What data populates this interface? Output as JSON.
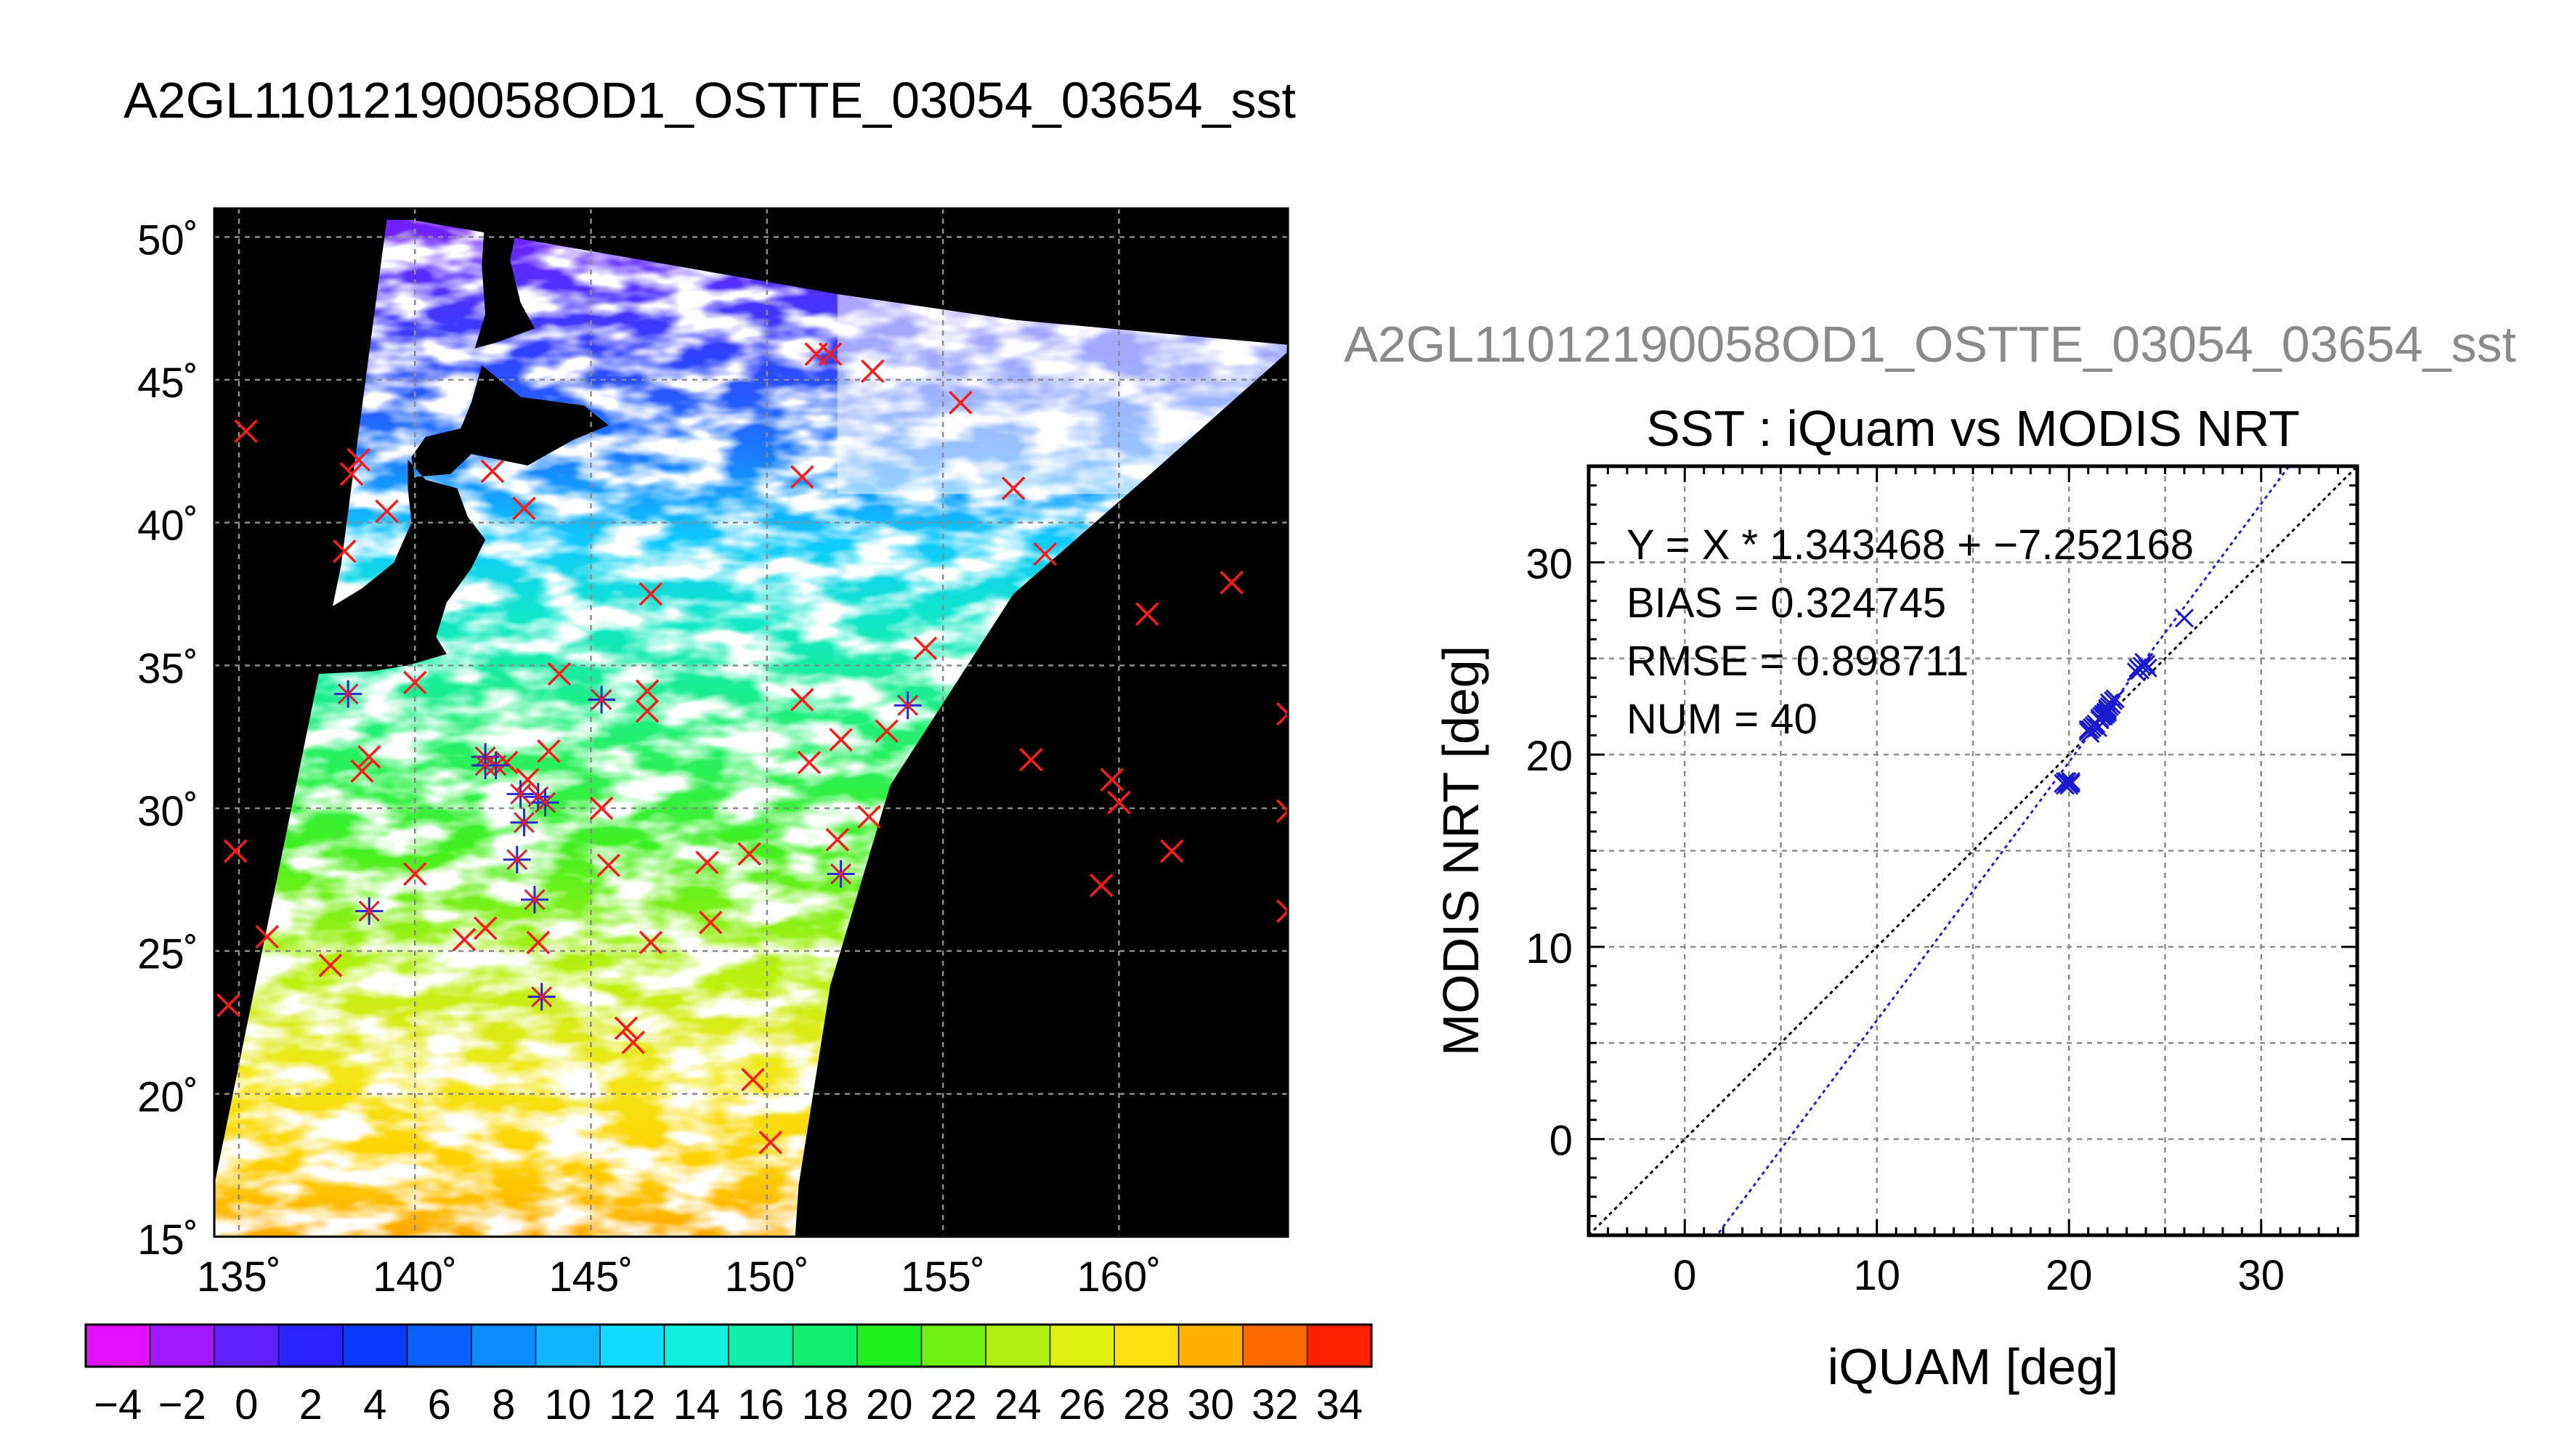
{
  "map_title": "A2GL11012190058OD1_OSTTE_03054_03654_sst",
  "scatter_super_title": "A2GL11012190058OD1_OSTTE_03054_03654_sst",
  "map": {
    "lat_ticks": [
      15,
      20,
      25,
      30,
      35,
      40,
      45,
      50
    ],
    "lat_labels": [
      "15˚",
      "20˚",
      "25˚",
      "30˚",
      "35˚",
      "40˚",
      "45˚",
      "50˚"
    ],
    "lon_ticks": [
      135,
      140,
      145,
      150,
      155,
      160
    ],
    "lon_labels": [
      "135˚",
      "140˚",
      "145˚",
      "150˚",
      "155˚",
      "160˚"
    ],
    "lon_range": [
      134.3,
      164.8
    ],
    "lat_range": [
      15.0,
      51.0
    ],
    "colors": {
      "background": "#000000",
      "cloud": "#ffffff",
      "red_marker": "#ff1a1a",
      "matched_marker": "#2a2ad0"
    },
    "red_markers": [
      [
        135.2,
        43.2
      ],
      [
        134.9,
        28.5
      ],
      [
        134.7,
        23.1
      ],
      [
        135.8,
        25.5
      ],
      [
        138.4,
        42.2
      ],
      [
        138.2,
        41.7
      ],
      [
        139.2,
        40.4
      ],
      [
        138.0,
        39.0
      ],
      [
        140.0,
        34.4
      ],
      [
        138.7,
        31.8
      ],
      [
        138.5,
        31.3
      ],
      [
        140.0,
        27.7
      ],
      [
        137.6,
        24.5
      ],
      [
        141.4,
        25.4
      ],
      [
        142.0,
        25.8
      ],
      [
        142.2,
        41.8
      ],
      [
        143.1,
        40.5
      ],
      [
        142.6,
        31.6
      ],
      [
        143.2,
        31.0
      ],
      [
        143.8,
        32.0
      ],
      [
        143.5,
        25.3
      ],
      [
        144.1,
        34.7
      ],
      [
        145.3,
        30.0
      ],
      [
        145.5,
        28.0
      ],
      [
        146.7,
        37.5
      ],
      [
        146.6,
        34.1
      ],
      [
        146.6,
        33.4
      ],
      [
        146.7,
        25.3
      ],
      [
        146.0,
        22.3
      ],
      [
        146.2,
        21.8
      ],
      [
        148.3,
        28.1
      ],
      [
        148.4,
        26.0
      ],
      [
        149.5,
        28.4
      ],
      [
        149.6,
        20.5
      ],
      [
        150.1,
        18.3
      ],
      [
        151.0,
        33.8
      ],
      [
        151.2,
        31.6
      ],
      [
        151.0,
        41.6
      ],
      [
        151.4,
        45.9
      ],
      [
        151.8,
        45.9
      ],
      [
        153.0,
        45.3
      ],
      [
        152.1,
        32.4
      ],
      [
        152.0,
        28.9
      ],
      [
        152.9,
        29.7
      ],
      [
        153.4,
        32.7
      ],
      [
        154.5,
        35.6
      ],
      [
        155.5,
        44.2
      ],
      [
        157.0,
        41.2
      ],
      [
        157.9,
        38.9
      ],
      [
        157.5,
        31.7
      ],
      [
        159.8,
        31.0
      ],
      [
        159.5,
        27.3
      ],
      [
        160.0,
        30.2
      ],
      [
        160.8,
        36.8
      ],
      [
        161.5,
        28.5
      ],
      [
        163.2,
        37.9
      ],
      [
        164.8,
        33.3
      ],
      [
        164.8,
        29.9
      ],
      [
        164.8,
        26.4
      ]
    ],
    "matched_markers": [
      [
        138.1,
        34.0
      ],
      [
        138.7,
        26.4
      ],
      [
        142.0,
        31.8
      ],
      [
        142.3,
        31.5
      ],
      [
        142.0,
        31.5
      ],
      [
        143.0,
        30.5
      ],
      [
        143.1,
        29.5
      ],
      [
        142.9,
        28.2
      ],
      [
        143.4,
        26.8
      ],
      [
        143.5,
        30.4
      ],
      [
        143.7,
        30.2
      ],
      [
        145.3,
        33.8
      ],
      [
        152.1,
        27.7
      ],
      [
        154.0,
        33.6
      ],
      [
        143.6,
        23.4
      ]
    ]
  },
  "colorbar": {
    "labels": [
      "−4",
      "−2",
      "0",
      "2",
      "4",
      "6",
      "8",
      "10",
      "12",
      "14",
      "16",
      "18",
      "20",
      "22",
      "24",
      "26",
      "28",
      "30",
      "32",
      "34"
    ],
    "colors": [
      "#e010ff",
      "#a018ff",
      "#6020ff",
      "#2a22ff",
      "#0a3aff",
      "#0a60ff",
      "#0a8cff",
      "#10b4ff",
      "#10dcff",
      "#10f0e0",
      "#10f0a8",
      "#10f070",
      "#20f020",
      "#70f010",
      "#b0f010",
      "#e0f010",
      "#ffe010",
      "#ffb000",
      "#ff6a00",
      "#ff2200"
    ],
    "range": [
      -5,
      35
    ]
  },
  "chart_data": {
    "type": "scatter",
    "title": "SST : iQuam vs MODIS NRT",
    "xlabel": "iQUAM [deg]",
    "ylabel": "MODIS NRT [deg]",
    "xlim": [
      -5,
      35
    ],
    "ylim": [
      -5,
      35
    ],
    "x_ticks": [
      0,
      10,
      20,
      30
    ],
    "y_ticks": [
      0,
      10,
      20,
      30
    ],
    "grid": true,
    "annotations": [
      "Y = X * 1.343468 + −7.252168",
      "BIAS = 0.324745",
      "RMSE = 0.898711",
      "NUM = 40"
    ],
    "fit_line": {
      "slope": 1.343468,
      "intercept": -7.252168,
      "color": "#2020d0"
    },
    "identity_line": {
      "color": "#000000"
    },
    "marker_color": "#1a1ad0",
    "points": {
      "x": [
        19.7,
        19.9,
        20.0,
        20.1,
        19.8,
        21.1,
        21.3,
        21.0,
        21.5,
        21.8,
        22.0,
        21.9,
        22.1,
        22.3,
        22.0,
        21.7,
        22.2,
        21.6,
        23.6,
        23.8,
        24.0,
        23.7,
        26.0,
        19.8,
        20.0,
        21.2,
        21.4,
        22.0,
        22.2,
        21.9,
        23.9,
        21.1,
        21.6,
        22.1,
        22.4,
        23.5,
        20.1,
        21.0,
        21.8,
        24.1
      ],
      "y": [
        18.5,
        18.6,
        18.4,
        18.5,
        18.6,
        21.3,
        21.5,
        21.2,
        21.4,
        22.0,
        22.4,
        22.1,
        22.5,
        22.8,
        22.2,
        22.0,
        22.6,
        21.9,
        24.5,
        24.6,
        24.7,
        24.4,
        27.1,
        18.4,
        18.5,
        21.4,
        21.6,
        22.3,
        22.6,
        22.2,
        24.8,
        21.1,
        21.8,
        22.7,
        22.9,
        24.3,
        18.6,
        21.3,
        22.1,
        24.5
      ]
    }
  }
}
